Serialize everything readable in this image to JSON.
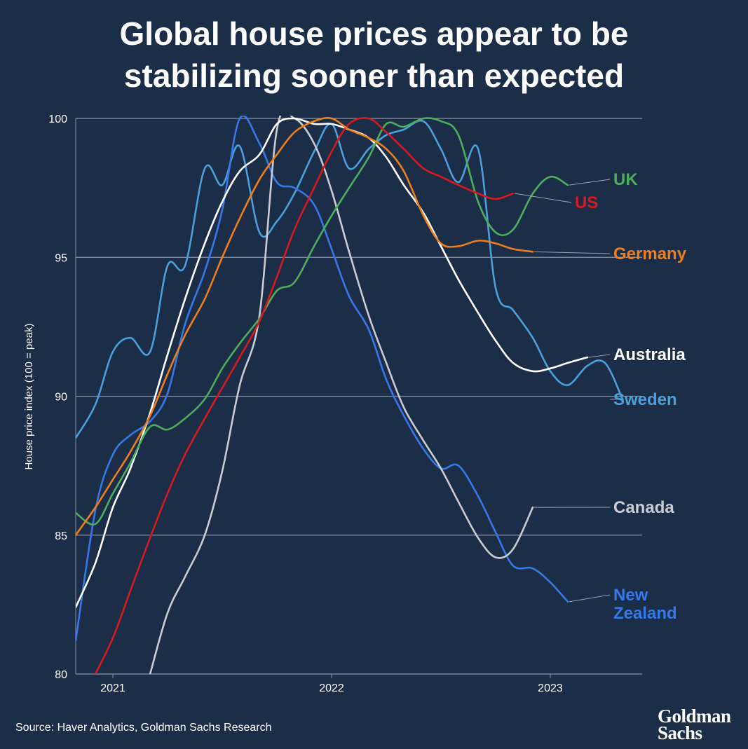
{
  "header": {
    "title_line1": "Global house prices appear to be",
    "title_line2": "stabilizing sooner than expected"
  },
  "footer": {
    "source": "Source: Haver Analytics, Goldman Sachs Research",
    "logo_line1": "Goldman",
    "logo_line2": "Sachs"
  },
  "chart_data": {
    "type": "line",
    "title": "Global house prices appear to be stabilizing sooner than expected",
    "ylabel": "House price index (100 = peak)",
    "xlabel": "",
    "xlim": [
      2020.83,
      2023.42
    ],
    "ylim": [
      80,
      100
    ],
    "yticks": [
      80,
      85,
      90,
      95,
      100
    ],
    "xticks": [
      {
        "value": 2021.0,
        "label": "2021"
      },
      {
        "value": 2022.0,
        "label": "2022"
      },
      {
        "value": 2023.0,
        "label": "2023"
      }
    ],
    "grid": "horizontal",
    "legend": "labels at line ends (right)",
    "series": [
      {
        "name": "Sweden",
        "color": "#4a9fdc",
        "points": [
          [
            2020.83,
            88.5
          ],
          [
            2020.92,
            89.7
          ],
          [
            2021.0,
            91.6
          ],
          [
            2021.08,
            92.1
          ],
          [
            2021.17,
            91.6
          ],
          [
            2021.25,
            94.7
          ],
          [
            2021.33,
            94.7
          ],
          [
            2021.42,
            98.2
          ],
          [
            2021.5,
            97.6
          ],
          [
            2021.58,
            99.0
          ],
          [
            2021.67,
            95.9
          ],
          [
            2021.75,
            96.3
          ],
          [
            2021.83,
            97.3
          ],
          [
            2021.92,
            98.8
          ],
          [
            2022.0,
            99.8
          ],
          [
            2022.08,
            98.2
          ],
          [
            2022.17,
            98.9
          ],
          [
            2022.25,
            99.4
          ],
          [
            2022.33,
            99.6
          ],
          [
            2022.42,
            99.9
          ],
          [
            2022.5,
            98.9
          ],
          [
            2022.58,
            97.7
          ],
          [
            2022.67,
            98.9
          ],
          [
            2022.75,
            93.9
          ],
          [
            2022.83,
            93.1
          ],
          [
            2022.92,
            92.1
          ],
          [
            2023.0,
            90.9
          ],
          [
            2023.08,
            90.4
          ],
          [
            2023.17,
            91.1
          ],
          [
            2023.25,
            91.2
          ],
          [
            2023.33,
            89.9
          ]
        ]
      },
      {
        "name": "New Zealand",
        "color": "#3579e8",
        "points": [
          [
            2020.83,
            81.2
          ],
          [
            2020.92,
            85.9
          ],
          [
            2021.0,
            87.9
          ],
          [
            2021.08,
            88.6
          ],
          [
            2021.17,
            89.1
          ],
          [
            2021.25,
            90.1
          ],
          [
            2021.33,
            92.6
          ],
          [
            2021.42,
            94.5
          ],
          [
            2021.5,
            96.7
          ],
          [
            2021.58,
            100.0
          ],
          [
            2021.67,
            99.1
          ],
          [
            2021.75,
            97.7
          ],
          [
            2021.83,
            97.5
          ],
          [
            2021.92,
            96.9
          ],
          [
            2022.0,
            95.3
          ],
          [
            2022.08,
            93.6
          ],
          [
            2022.17,
            92.4
          ],
          [
            2022.25,
            90.6
          ],
          [
            2022.33,
            89.3
          ],
          [
            2022.42,
            88.1
          ],
          [
            2022.5,
            87.4
          ],
          [
            2022.58,
            87.5
          ],
          [
            2022.67,
            86.4
          ],
          [
            2022.75,
            85.1
          ],
          [
            2022.83,
            83.9
          ],
          [
            2022.92,
            83.8
          ],
          [
            2023.0,
            83.3
          ],
          [
            2023.08,
            82.6
          ]
        ]
      },
      {
        "name": "Canada",
        "color": "#c9ccd2",
        "points": [
          [
            2021.17,
            80.0
          ],
          [
            2021.25,
            82.2
          ],
          [
            2021.33,
            83.5
          ],
          [
            2021.42,
            85.0
          ],
          [
            2021.5,
            87.3
          ],
          [
            2021.58,
            90.4
          ],
          [
            2021.67,
            92.9
          ],
          [
            2021.75,
            99.6
          ],
          [
            2021.83,
            100.0
          ],
          [
            2021.92,
            99.1
          ],
          [
            2022.0,
            97.4
          ],
          [
            2022.08,
            95.2
          ],
          [
            2022.17,
            92.9
          ],
          [
            2022.25,
            91.2
          ],
          [
            2022.33,
            89.6
          ],
          [
            2022.42,
            88.4
          ],
          [
            2022.5,
            87.4
          ],
          [
            2022.58,
            86.2
          ],
          [
            2022.67,
            84.9
          ],
          [
            2022.75,
            84.2
          ],
          [
            2022.83,
            84.5
          ],
          [
            2022.92,
            86.0
          ]
        ]
      },
      {
        "name": "Australia",
        "color": "#ffffff",
        "points": [
          [
            2020.83,
            82.4
          ],
          [
            2020.92,
            84.0
          ],
          [
            2021.0,
            86.0
          ],
          [
            2021.08,
            87.4
          ],
          [
            2021.17,
            89.4
          ],
          [
            2021.25,
            91.5
          ],
          [
            2021.33,
            93.5
          ],
          [
            2021.42,
            95.5
          ],
          [
            2021.5,
            97.0
          ],
          [
            2021.58,
            98.1
          ],
          [
            2021.67,
            98.7
          ],
          [
            2021.75,
            99.8
          ],
          [
            2021.83,
            100.0
          ],
          [
            2021.92,
            99.8
          ],
          [
            2022.0,
            99.8
          ],
          [
            2022.08,
            99.6
          ],
          [
            2022.17,
            99.3
          ],
          [
            2022.25,
            98.6
          ],
          [
            2022.33,
            97.6
          ],
          [
            2022.42,
            96.6
          ],
          [
            2022.5,
            95.4
          ],
          [
            2022.58,
            94.2
          ],
          [
            2022.67,
            93.0
          ],
          [
            2022.75,
            92.0
          ],
          [
            2022.83,
            91.2
          ],
          [
            2022.92,
            90.9
          ],
          [
            2023.0,
            91.0
          ],
          [
            2023.08,
            91.2
          ],
          [
            2023.17,
            91.4
          ]
        ]
      },
      {
        "name": "UK",
        "color": "#4cae5c",
        "points": [
          [
            2020.83,
            85.8
          ],
          [
            2020.92,
            85.4
          ],
          [
            2021.0,
            86.5
          ],
          [
            2021.08,
            87.6
          ],
          [
            2021.17,
            88.9
          ],
          [
            2021.25,
            88.8
          ],
          [
            2021.33,
            89.2
          ],
          [
            2021.42,
            89.9
          ],
          [
            2021.5,
            91.0
          ],
          [
            2021.58,
            91.9
          ],
          [
            2021.67,
            92.8
          ],
          [
            2021.75,
            93.8
          ],
          [
            2021.83,
            94.1
          ],
          [
            2021.92,
            95.4
          ],
          [
            2022.0,
            96.5
          ],
          [
            2022.08,
            97.5
          ],
          [
            2022.17,
            98.6
          ],
          [
            2022.25,
            99.8
          ],
          [
            2022.33,
            99.7
          ],
          [
            2022.42,
            100.0
          ],
          [
            2022.5,
            99.9
          ],
          [
            2022.58,
            99.4
          ],
          [
            2022.67,
            97.0
          ],
          [
            2022.75,
            95.9
          ],
          [
            2022.83,
            96.0
          ],
          [
            2022.92,
            97.3
          ],
          [
            2023.0,
            97.9
          ],
          [
            2023.08,
            97.6
          ]
        ]
      },
      {
        "name": "US",
        "color": "#d71920",
        "points": [
          [
            2020.92,
            80.0
          ],
          [
            2021.0,
            81.3
          ],
          [
            2021.08,
            83.0
          ],
          [
            2021.17,
            84.9
          ],
          [
            2021.25,
            86.5
          ],
          [
            2021.33,
            87.9
          ],
          [
            2021.42,
            89.2
          ],
          [
            2021.5,
            90.3
          ],
          [
            2021.58,
            91.4
          ],
          [
            2021.67,
            92.7
          ],
          [
            2021.75,
            94.3
          ],
          [
            2021.83,
            96.0
          ],
          [
            2021.92,
            97.5
          ],
          [
            2022.0,
            98.8
          ],
          [
            2022.08,
            99.8
          ],
          [
            2022.17,
            100.0
          ],
          [
            2022.25,
            99.5
          ],
          [
            2022.33,
            98.9
          ],
          [
            2022.42,
            98.2
          ],
          [
            2022.5,
            97.9
          ],
          [
            2022.58,
            97.6
          ],
          [
            2022.67,
            97.3
          ],
          [
            2022.75,
            97.1
          ],
          [
            2022.83,
            97.3
          ]
        ]
      },
      {
        "name": "Germany",
        "color": "#ee7d1c",
        "points": [
          [
            2020.83,
            85.0
          ],
          [
            2020.92,
            86.0
          ],
          [
            2021.0,
            87.0
          ],
          [
            2021.08,
            88.0
          ],
          [
            2021.17,
            89.3
          ],
          [
            2021.25,
            90.8
          ],
          [
            2021.33,
            92.2
          ],
          [
            2021.42,
            93.5
          ],
          [
            2021.5,
            95.0
          ],
          [
            2021.58,
            96.4
          ],
          [
            2021.67,
            97.8
          ],
          [
            2021.75,
            98.7
          ],
          [
            2021.83,
            99.5
          ],
          [
            2021.92,
            99.9
          ],
          [
            2022.0,
            100.0
          ],
          [
            2022.08,
            99.6
          ],
          [
            2022.17,
            99.3
          ],
          [
            2022.25,
            98.9
          ],
          [
            2022.33,
            98.1
          ],
          [
            2022.42,
            96.5
          ],
          [
            2022.5,
            95.5
          ],
          [
            2022.58,
            95.4
          ],
          [
            2022.67,
            95.6
          ],
          [
            2022.75,
            95.5
          ],
          [
            2022.83,
            95.3
          ],
          [
            2022.92,
            95.2
          ]
        ]
      }
    ]
  }
}
